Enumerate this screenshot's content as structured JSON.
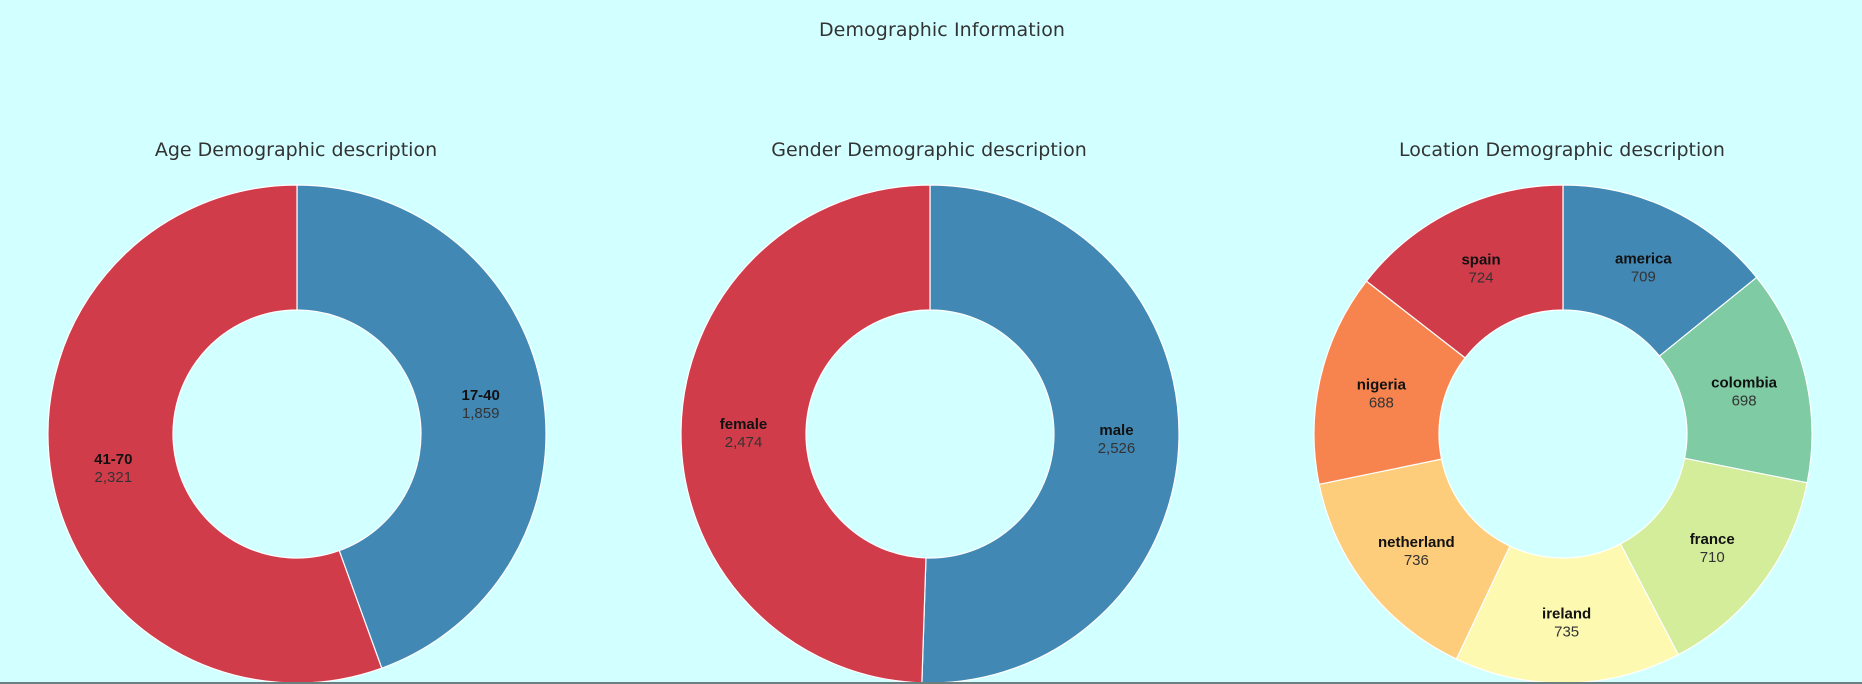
{
  "page": {
    "title": "Demographic Information"
  },
  "colors": {
    "background": "#d2ffff",
    "palette": [
      "#d13c4b",
      "#4288b5",
      "#7ecba4",
      "#d4ed9b",
      "#fdf9b1",
      "#fecd7b",
      "#f7844e"
    ]
  },
  "chart_data": [
    {
      "type": "pie",
      "title": "Age Demographic description",
      "donut": true,
      "slices": [
        {
          "label": "17-40",
          "value": 1859,
          "display": "1,859",
          "color": "#4288b5"
        },
        {
          "label": "41-70",
          "value": 2321,
          "display": "2,321",
          "color": "#d13c4b"
        }
      ]
    },
    {
      "type": "pie",
      "title": "Gender Demographic description",
      "donut": true,
      "slices": [
        {
          "label": "male",
          "value": 2526,
          "display": "2,526",
          "color": "#4288b5"
        },
        {
          "label": "female",
          "value": 2474,
          "display": "2,474",
          "color": "#d13c4b"
        }
      ]
    },
    {
      "type": "pie",
      "title": "Location Demographic description",
      "donut": true,
      "slices": [
        {
          "label": "america",
          "value": 709,
          "display": "709",
          "color": "#4288b5"
        },
        {
          "label": "colombia",
          "value": 698,
          "display": "698",
          "color": "#7ecba4"
        },
        {
          "label": "france",
          "value": 710,
          "display": "710",
          "color": "#d4ed9b"
        },
        {
          "label": "ireland",
          "value": 735,
          "display": "735",
          "color": "#fdf9b1"
        },
        {
          "label": "netherland",
          "value": 736,
          "display": "736",
          "color": "#fecd7b"
        },
        {
          "label": "nigeria",
          "value": 688,
          "display": "688",
          "color": "#f7844e"
        },
        {
          "label": "spain",
          "value": 724,
          "display": "724",
          "color": "#d13c4b"
        }
      ]
    }
  ]
}
